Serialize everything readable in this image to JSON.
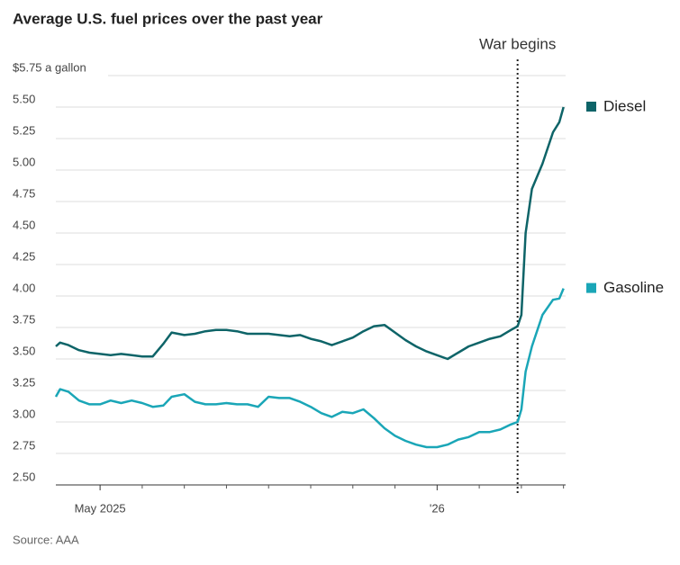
{
  "chart_data": {
    "type": "line",
    "title": "Average U.S. fuel prices over the past year",
    "source": "Source: AAA",
    "x": [
      3.95,
      4.05,
      4.25,
      4.5,
      4.75,
      5,
      5.25,
      5.5,
      5.75,
      6,
      6.25,
      6.5,
      6.7,
      7,
      7.25,
      7.5,
      7.75,
      8,
      8.25,
      8.5,
      8.75,
      9,
      9.25,
      9.5,
      9.75,
      10,
      10.25,
      10.5,
      10.75,
      11,
      11.25,
      11.5,
      11.75,
      12,
      12.25,
      12.5,
      12.75,
      13,
      13.25,
      13.5,
      13.75,
      14,
      14.25,
      14.5,
      14.75,
      14.91,
      15,
      15.1,
      15.25,
      15.5,
      15.75,
      15.9,
      16
    ],
    "series": [
      {
        "name": "Diesel",
        "color": "#0e6468",
        "values": [
          3.6,
          3.63,
          3.61,
          3.57,
          3.55,
          3.54,
          3.53,
          3.54,
          3.53,
          3.52,
          3.52,
          3.62,
          3.71,
          3.69,
          3.7,
          3.72,
          3.73,
          3.73,
          3.72,
          3.7,
          3.7,
          3.7,
          3.69,
          3.68,
          3.69,
          3.66,
          3.64,
          3.61,
          3.64,
          3.67,
          3.72,
          3.76,
          3.77,
          3.71,
          3.65,
          3.6,
          3.56,
          3.53,
          3.5,
          3.55,
          3.6,
          3.63,
          3.66,
          3.68,
          3.73,
          3.76,
          3.85,
          4.5,
          4.85,
          5.05,
          5.3,
          5.38,
          5.5
        ]
      },
      {
        "name": "Gasoline",
        "color": "#1aa6b7",
        "values": [
          3.2,
          3.26,
          3.24,
          3.17,
          3.14,
          3.14,
          3.17,
          3.15,
          3.17,
          3.15,
          3.12,
          3.13,
          3.2,
          3.22,
          3.16,
          3.14,
          3.14,
          3.15,
          3.14,
          3.14,
          3.12,
          3.2,
          3.19,
          3.19,
          3.16,
          3.12,
          3.07,
          3.04,
          3.08,
          3.07,
          3.1,
          3.03,
          2.95,
          2.89,
          2.85,
          2.82,
          2.8,
          2.8,
          2.82,
          2.86,
          2.88,
          2.92,
          2.92,
          2.94,
          2.98,
          3.0,
          3.1,
          3.4,
          3.6,
          3.85,
          3.97,
          3.98,
          4.06
        ]
      }
    ],
    "xlim": [
      3.95,
      16.05
    ],
    "xticks": [
      {
        "value": 5,
        "label": "May 2025"
      },
      {
        "value": 13,
        "label": "'26"
      }
    ],
    "x_minor_ticks": [
      6,
      7,
      8,
      9,
      10,
      11,
      12,
      14,
      15,
      16
    ],
    "ylim": [
      2.5,
      5.75
    ],
    "yticks": [
      {
        "value": 2.5,
        "label": "2.50"
      },
      {
        "value": 2.75,
        "label": "2.75"
      },
      {
        "value": 3,
        "label": "3.00"
      },
      {
        "value": 3.25,
        "label": "3.25"
      },
      {
        "value": 3.5,
        "label": "3.50"
      },
      {
        "value": 3.75,
        "label": "3.75"
      },
      {
        "value": 4,
        "label": "4.00"
      },
      {
        "value": 4.25,
        "label": "4.25"
      },
      {
        "value": 4.5,
        "label": "4.50"
      },
      {
        "value": 4.75,
        "label": "4.75"
      },
      {
        "value": 5,
        "label": "5.00"
      },
      {
        "value": 5.25,
        "label": "5.25"
      },
      {
        "value": 5.5,
        "label": "5.50"
      },
      {
        "value": 5.75,
        "label": "$5.75 a gallon"
      }
    ],
    "grid": true,
    "annotation": {
      "text": "War begins",
      "x": 14.91
    }
  }
}
